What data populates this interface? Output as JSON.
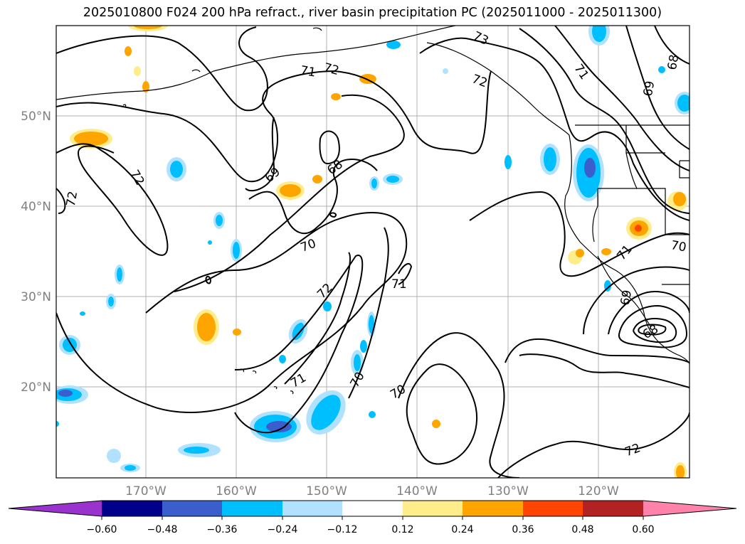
{
  "title": "2025010800 F024 200 hPa refract., river basin precipitation PC (2025011000 - 2025011300)",
  "map": {
    "latitude_labels": [
      "50°N",
      "40°N",
      "30°N",
      "20°N"
    ],
    "longitude_labels": [
      "170°W",
      "160°W",
      "150°W",
      "140°W",
      "130°W",
      "120°W"
    ],
    "contour_labels": [
      "72",
      "72",
      "71",
      "72",
      "73",
      "71",
      "69",
      "68",
      "72",
      "69",
      "68",
      "70",
      "72",
      "71",
      "71",
      "70",
      "70",
      "72",
      "71",
      "70",
      "69",
      "68"
    ]
  },
  "colorbar": {
    "tick_labels": [
      "−0.60",
      "−0.48",
      "−0.36",
      "−0.24",
      "−0.12",
      "0.12",
      "0.24",
      "0.36",
      "0.48",
      "0.60"
    ],
    "colors": [
      "#9a32cd",
      "#00008b",
      "#3a5fcd",
      "#00bfff",
      "#b0e2ff",
      "#ffffff",
      "#ffec8b",
      "#ffa500",
      "#ff4500",
      "#b22222",
      "#ff82ab"
    ]
  }
}
